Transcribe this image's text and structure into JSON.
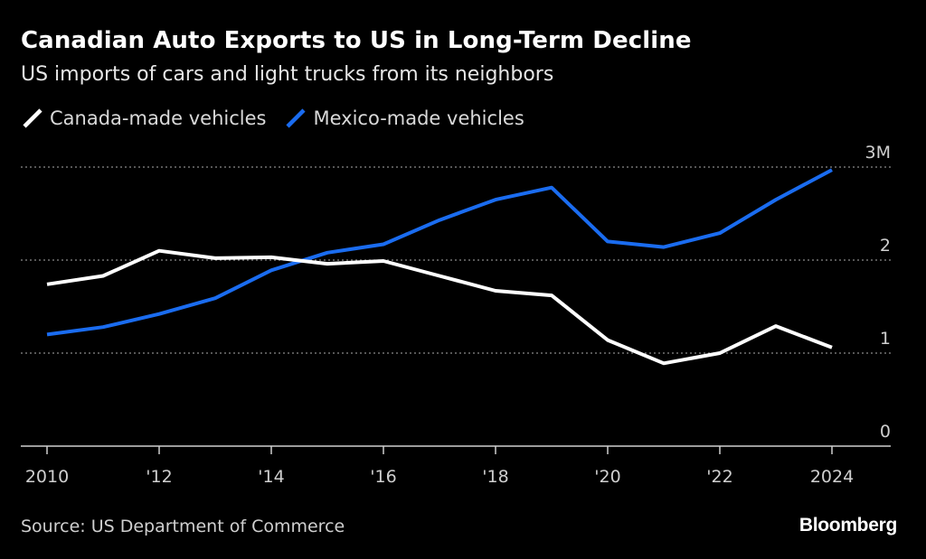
{
  "header": {
    "title": "Canadian Auto Exports to US in Long-Term Decline",
    "subtitle": "US imports of cars and light trucks from its neighbors"
  },
  "footer": {
    "source": "Source: US Department of Commerce",
    "brand": "Bloomberg"
  },
  "colors": {
    "background": "#000000",
    "canada": "#ffffff",
    "mexico": "#1a6cf0",
    "grid": "#8a8a8a",
    "axis": "#cfcfcf"
  },
  "chart_data": {
    "type": "line",
    "title": "Canadian Auto Exports to US in Long-Term Decline",
    "subtitle": "US imports of cars and light trucks from its neighbors",
    "x": [
      2010,
      2011,
      2012,
      2013,
      2014,
      2015,
      2016,
      2017,
      2018,
      2019,
      2020,
      2021,
      2022,
      2023,
      2024
    ],
    "xtick_values": [
      2010,
      2012,
      2014,
      2016,
      2018,
      2020,
      2022,
      2024
    ],
    "xtick_labels": [
      "2010",
      "'12",
      "'14",
      "'16",
      "'18",
      "'20",
      "'22",
      "2024"
    ],
    "ytick_values": [
      0,
      1,
      2,
      3
    ],
    "ytick_labels": [
      "0",
      "1",
      "2",
      "3M"
    ],
    "ylim": [
      0,
      3
    ],
    "grid": true,
    "legend_position": "top-left",
    "series": [
      {
        "name": "Canada-made vehicles",
        "color": "#ffffff",
        "values": [
          1.74,
          1.83,
          2.1,
          2.02,
          2.03,
          1.96,
          1.99,
          1.83,
          1.67,
          1.62,
          1.14,
          0.89,
          1.0,
          1.29,
          1.06
        ]
      },
      {
        "name": "Mexico-made vehicles",
        "color": "#1a6cf0",
        "values": [
          1.2,
          1.28,
          1.42,
          1.59,
          1.89,
          2.08,
          2.17,
          2.43,
          2.65,
          2.78,
          2.2,
          2.14,
          2.29,
          2.65,
          2.97
        ]
      }
    ],
    "source": "Source: US Department of Commerce"
  }
}
